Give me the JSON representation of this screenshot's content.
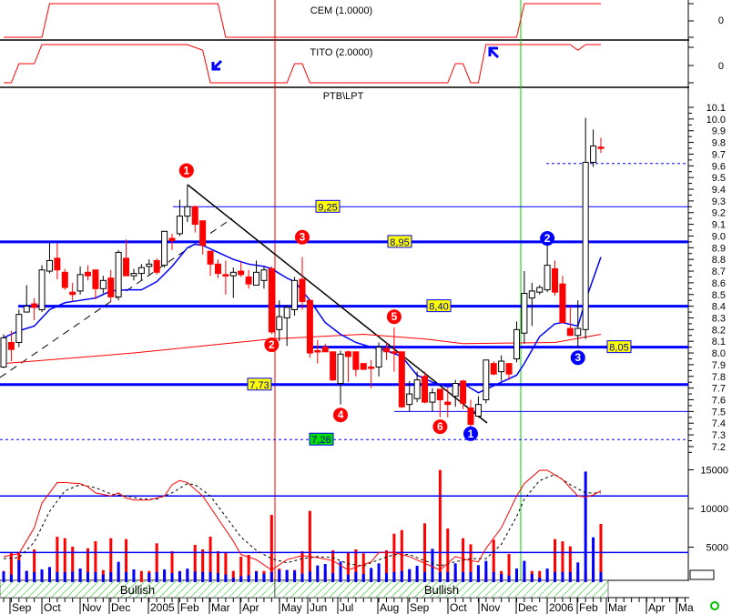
{
  "panels": {
    "cem": {
      "title": "CEM (1.0000)",
      "zero_label": "0"
    },
    "tito": {
      "title": "TITO (2.0000)",
      "zero_label": "0"
    },
    "price": {
      "title": "PTB\\LPT"
    }
  },
  "colors": {
    "bull_candle": "#ffffff",
    "bear_candle": "#ff0000",
    "ma_short": "#0000ff",
    "ma_long": "#ff0000",
    "level_line": "#0000ff",
    "bullish_zone": "#00c000",
    "bearish_zone": "#ff0000",
    "label_bg": "#ffff00",
    "support_label_bg": "#00e000"
  },
  "chart_data": {
    "type": "candlestick",
    "price_axis": {
      "ylim": [
        7.2,
        10.1
      ],
      "ticks": [
        "10.1",
        "10.0",
        "9.9",
        "9.8",
        "9.7",
        "9.6",
        "9.5",
        "9.4",
        "9.3",
        "9.2",
        "9.1",
        "9.0",
        "8.9",
        "8.8",
        "8.7",
        "8.6",
        "8.5",
        "8.4",
        "8.3",
        "8.2",
        "8.1",
        "8.0",
        "7.9",
        "7.8",
        "7.7",
        "7.6",
        "7.5",
        "7.4",
        "7.3",
        "7.2"
      ]
    },
    "volume_axis": {
      "ticks": [
        "15000",
        "10000",
        "5000"
      ],
      "values": [
        15000,
        10000,
        5000
      ]
    },
    "x_ticks": [
      "Sep",
      "Oct",
      "Nov",
      "Dec",
      "2005",
      "Feb",
      "Mar",
      "Apr",
      "May",
      "Jun",
      "Jul",
      "Aug",
      "Sep",
      "Oct",
      "Nov",
      "Dec",
      "2006",
      "Feb",
      "Mar",
      "Apr",
      "Ma"
    ],
    "ohlc": [
      [
        7.88,
        8.16,
        7.87,
        8.13
      ],
      [
        8.09,
        8.19,
        7.93,
        8.03
      ],
      [
        8.09,
        8.37,
        8.05,
        8.33
      ],
      [
        8.35,
        8.58,
        8.35,
        8.4
      ],
      [
        8.42,
        8.47,
        8.28,
        8.39
      ],
      [
        8.37,
        8.75,
        8.35,
        8.71
      ],
      [
        8.7,
        8.94,
        8.68,
        8.79
      ],
      [
        8.81,
        8.94,
        8.63,
        8.71
      ],
      [
        8.69,
        8.72,
        8.54,
        8.56
      ],
      [
        8.52,
        8.6,
        8.44,
        8.5
      ],
      [
        8.53,
        8.74,
        8.5,
        8.67
      ],
      [
        8.69,
        8.75,
        8.62,
        8.66
      ],
      [
        8.71,
        8.71,
        8.46,
        8.55
      ],
      [
        8.55,
        8.66,
        8.51,
        8.62
      ],
      [
        8.64,
        8.71,
        8.44,
        8.48
      ],
      [
        8.48,
        8.88,
        8.45,
        8.86
      ],
      [
        8.81,
        8.97,
        8.66,
        8.66
      ],
      [
        8.66,
        8.72,
        8.62,
        8.68
      ],
      [
        8.68,
        8.76,
        8.62,
        8.73
      ],
      [
        8.74,
        8.8,
        8.67,
        8.76
      ],
      [
        8.79,
        8.81,
        8.67,
        8.69
      ],
      [
        8.75,
        9.04,
        8.73,
        9.04
      ],
      [
        8.98,
        9.02,
        8.88,
        8.96
      ],
      [
        9.02,
        9.31,
        9.0,
        9.17
      ],
      [
        9.17,
        9.44,
        9.12,
        9.25
      ],
      [
        9.25,
        9.26,
        9.03,
        9.1
      ],
      [
        9.13,
        9.13,
        8.84,
        8.92
      ],
      [
        8.87,
        8.87,
        8.66,
        8.76
      ],
      [
        8.76,
        8.8,
        8.64,
        8.68
      ],
      [
        8.67,
        8.79,
        8.5,
        8.67
      ],
      [
        8.66,
        8.73,
        8.47,
        8.69
      ],
      [
        8.7,
        8.78,
        8.65,
        8.67
      ],
      [
        8.65,
        8.71,
        8.55,
        8.59
      ],
      [
        8.58,
        8.79,
        8.58,
        8.69
      ],
      [
        8.62,
        8.74,
        8.55,
        8.71
      ],
      [
        8.72,
        8.74,
        8.16,
        8.18
      ],
      [
        8.2,
        8.45,
        8.1,
        8.31
      ],
      [
        8.3,
        8.41,
        8.06,
        8.39
      ],
      [
        8.37,
        8.65,
        8.32,
        8.62
      ],
      [
        8.63,
        8.82,
        8.37,
        8.44
      ],
      [
        8.45,
        8.45,
        7.96,
        8.0
      ],
      [
        8.02,
        8.11,
        7.91,
        8.02
      ],
      [
        8.05,
        8.08,
        8.01,
        8.01
      ],
      [
        8.01,
        8.01,
        7.76,
        7.77
      ],
      [
        7.74,
        8.02,
        7.56,
        7.99
      ],
      [
        8.01,
        8.02,
        7.75,
        7.97
      ],
      [
        8.01,
        8.01,
        7.8,
        7.86
      ],
      [
        7.91,
        7.91,
        7.86,
        7.86
      ],
      [
        7.88,
        7.94,
        7.7,
        7.88
      ],
      [
        7.88,
        8.09,
        7.8,
        8.05
      ],
      [
        8.04,
        8.09,
        7.94,
        8.01
      ],
      [
        8.01,
        8.22,
        7.84,
        8.01
      ],
      [
        8.01,
        8.01,
        7.53,
        7.54
      ],
      [
        7.56,
        7.76,
        7.5,
        7.65
      ],
      [
        7.61,
        7.84,
        7.58,
        7.77
      ],
      [
        7.8,
        7.84,
        7.57,
        7.58
      ],
      [
        7.58,
        7.7,
        7.5,
        7.66
      ],
      [
        7.69,
        7.69,
        7.45,
        7.6
      ],
      [
        7.58,
        7.7,
        7.45,
        7.56
      ],
      [
        7.63,
        7.77,
        7.54,
        7.74
      ],
      [
        7.76,
        7.77,
        7.52,
        7.57
      ],
      [
        7.53,
        7.6,
        7.36,
        7.39
      ],
      [
        7.46,
        7.63,
        7.45,
        7.56
      ],
      [
        7.6,
        7.94,
        7.57,
        7.94
      ],
      [
        7.91,
        7.93,
        7.81,
        7.82
      ],
      [
        7.84,
        7.98,
        7.76,
        7.93
      ],
      [
        7.91,
        7.91,
        7.77,
        7.82
      ],
      [
        7.95,
        8.27,
        7.92,
        8.2
      ],
      [
        8.17,
        8.7,
        8.08,
        8.51
      ],
      [
        8.47,
        8.6,
        8.23,
        8.53
      ],
      [
        8.52,
        8.58,
        8.5,
        8.56
      ],
      [
        8.54,
        8.93,
        8.52,
        8.75
      ],
      [
        8.72,
        8.79,
        8.49,
        8.52
      ],
      [
        8.59,
        8.66,
        8.26,
        8.26
      ],
      [
        8.21,
        8.4,
        8.15,
        8.15
      ],
      [
        8.15,
        8.45,
        8.05,
        8.21
      ],
      [
        8.2,
        10.01,
        8.12,
        9.63
      ],
      [
        9.63,
        9.91,
        9.59,
        9.77
      ],
      [
        9.76,
        9.84,
        9.71,
        9.76
      ]
    ],
    "ma_short": [
      [
        0,
        8.13
      ],
      [
        2,
        8.19
      ],
      [
        4,
        8.23
      ],
      [
        6,
        8.37
      ],
      [
        8,
        8.43
      ],
      [
        10,
        8.45
      ],
      [
        12,
        8.47
      ],
      [
        14,
        8.53
      ],
      [
        16,
        8.54
      ],
      [
        18,
        8.54
      ],
      [
        20,
        8.61
      ],
      [
        22,
        8.74
      ],
      [
        24,
        8.9
      ],
      [
        25,
        8.93
      ],
      [
        26,
        8.92
      ],
      [
        28,
        8.86
      ],
      [
        30,
        8.8
      ],
      [
        32,
        8.76
      ],
      [
        34,
        8.74
      ],
      [
        35,
        8.72
      ],
      [
        37,
        8.64
      ],
      [
        38,
        8.61
      ],
      [
        40,
        8.45
      ],
      [
        42,
        8.26
      ],
      [
        44,
        8.16
      ],
      [
        46,
        8.09
      ],
      [
        48,
        8.05
      ],
      [
        50,
        8.02
      ],
      [
        52,
        7.97
      ],
      [
        54,
        7.81
      ],
      [
        56,
        7.75
      ],
      [
        58,
        7.71
      ],
      [
        60,
        7.74
      ],
      [
        62,
        7.66
      ],
      [
        63,
        7.69
      ],
      [
        65,
        7.75
      ],
      [
        67,
        7.81
      ],
      [
        68,
        7.91
      ],
      [
        70,
        8.14
      ],
      [
        72,
        8.25
      ],
      [
        73,
        8.26
      ],
      [
        75,
        8.23
      ],
      [
        76,
        8.45
      ],
      [
        78,
        8.82
      ]
    ],
    "ma_long": [
      [
        0,
        7.91
      ],
      [
        17,
        8.0
      ],
      [
        35,
        8.12
      ],
      [
        47,
        8.16
      ],
      [
        55,
        8.12
      ],
      [
        60,
        8.08
      ],
      [
        72,
        8.09
      ],
      [
        78,
        8.16
      ]
    ],
    "volume_red": [
      1450,
      3840,
      3730,
      1450,
      4240,
      1570,
      1450,
      5880,
      5690,
      4590,
      1760,
      4390,
      5290,
      1570,
      5690,
      1450,
      5570,
      1570,
      1450,
      1450,
      5020,
      1450,
      4000,
      1450,
      1450,
      4820,
      4240,
      5880,
      4000,
      3880,
      1450,
      3290,
      3530,
      1450,
      1450,
      8710,
      1760,
      1570,
      1570,
      4000,
      9220,
      1450,
      1450,
      4120,
      1450,
      3840,
      4240,
      3730,
      1450,
      1450,
      4120,
      6270,
      6740,
      1450,
      1450,
      7610,
      1450,
      14510,
      6940,
      1450,
      5690,
      4900,
      1450,
      1450,
      5490,
      1450,
      3650,
      1450,
      1450,
      1450,
      1450,
      1450,
      5570,
      5290,
      4630,
      1450,
      1450,
      1450,
      7530
    ],
    "volume_blue": [
      1370,
      980,
      2820,
      1450,
      1290,
      1650,
      1960,
      1290,
      1290,
      1370,
      1760,
      1290,
      1290,
      980,
      1290,
      2630,
      1290,
      1650,
      0,
      1180,
      1290,
      1650,
      1180,
      1370,
      1760,
      1370,
      1290,
      1290,
      1180,
      980,
      590,
      780,
      900,
      1370,
      1100,
      1290,
      1570,
      1570,
      1490,
      1100,
      1370,
      2160,
      2350,
      1180,
      2670,
      980,
      1290,
      1060,
      1840,
      2430,
      1180,
      1290,
      1450,
      1690,
      2120,
      1290,
      4310,
      1290,
      1290,
      2430,
      1290,
      1290,
      2200,
      2750,
      1290,
      1060,
      860,
      1760,
      2750,
      1060,
      590,
      1760,
      1290,
      1290,
      1290,
      2550,
      14310,
      5800,
      1290
    ],
    "stoch_k": [
      [
        0,
        16
      ],
      [
        2,
        19
      ],
      [
        4,
        44
      ],
      [
        5,
        68
      ],
      [
        7,
        88
      ],
      [
        8,
        88
      ],
      [
        10,
        87
      ],
      [
        11,
        84
      ],
      [
        12,
        78
      ],
      [
        14,
        75
      ],
      [
        15,
        78
      ],
      [
        16,
        73
      ],
      [
        17,
        71
      ],
      [
        19,
        71
      ],
      [
        21,
        75
      ],
      [
        22,
        86
      ],
      [
        23,
        90
      ],
      [
        24,
        88
      ],
      [
        26,
        75
      ],
      [
        28,
        53
      ],
      [
        30,
        31
      ],
      [
        31,
        18
      ],
      [
        33,
        13
      ],
      [
        35,
        3
      ],
      [
        37,
        13
      ],
      [
        39,
        17
      ],
      [
        41,
        15
      ],
      [
        43,
        12
      ],
      [
        45,
        3
      ],
      [
        48,
        11
      ],
      [
        49,
        20
      ],
      [
        51,
        20
      ],
      [
        53,
        16
      ],
      [
        57,
        3
      ],
      [
        59,
        16
      ],
      [
        61,
        12
      ],
      [
        62,
        11
      ],
      [
        63,
        24
      ],
      [
        65,
        44
      ],
      [
        67,
        75
      ],
      [
        68,
        87
      ],
      [
        70,
        100
      ],
      [
        71,
        100
      ],
      [
        73,
        91
      ],
      [
        75,
        75
      ],
      [
        76,
        74
      ],
      [
        77,
        76
      ],
      [
        78,
        80
      ]
    ],
    "stoch_d": [
      [
        0,
        14
      ],
      [
        2,
        15
      ],
      [
        4,
        30
      ],
      [
        5,
        45
      ],
      [
        6,
        60
      ],
      [
        8,
        80
      ],
      [
        10,
        86
      ],
      [
        12,
        83
      ],
      [
        14,
        77
      ],
      [
        16,
        75
      ],
      [
        18,
        72
      ],
      [
        20,
        72
      ],
      [
        22,
        78
      ],
      [
        24,
        87
      ],
      [
        25,
        86
      ],
      [
        27,
        75
      ],
      [
        29,
        55
      ],
      [
        31,
        35
      ],
      [
        33,
        22
      ],
      [
        35,
        14
      ],
      [
        37,
        10
      ],
      [
        39,
        14
      ],
      [
        41,
        16
      ],
      [
        43,
        15
      ],
      [
        45,
        9
      ],
      [
        47,
        7
      ],
      [
        49,
        13
      ],
      [
        51,
        18
      ],
      [
        53,
        18
      ],
      [
        55,
        12
      ],
      [
        57,
        7
      ],
      [
        59,
        11
      ],
      [
        61,
        14
      ],
      [
        63,
        14
      ],
      [
        65,
        28
      ],
      [
        67,
        55
      ],
      [
        68,
        72
      ],
      [
        70,
        90
      ],
      [
        72,
        96
      ],
      [
        74,
        86
      ],
      [
        76,
        78
      ],
      [
        78,
        78
      ]
    ],
    "stoch_levels": [
      75,
      20
    ],
    "levels": [
      {
        "value": 9.25,
        "label": "9,25",
        "style": "thin"
      },
      {
        "value": 8.95,
        "label": "8,95",
        "style": "thick"
      },
      {
        "value": 8.4,
        "label": "8,40",
        "style": "thick"
      },
      {
        "value": 8.05,
        "label": "8,05",
        "style": "thick"
      },
      {
        "value": 7.73,
        "label": "7,73",
        "style": "thick"
      },
      {
        "value": 7.26,
        "label": "7,26",
        "style": "dashed"
      },
      {
        "value": 7.5,
        "label": "",
        "style": "thin"
      },
      {
        "value": 9.62,
        "label": "",
        "style": "dashed"
      }
    ],
    "wave_markers": [
      {
        "label": "1",
        "color": "red",
        "index": 24,
        "price": 9.56
      },
      {
        "label": "2",
        "color": "red",
        "index": 35,
        "price": 8.07
      },
      {
        "label": "3",
        "color": "red",
        "index": 39,
        "price": 8.99
      },
      {
        "label": "4",
        "color": "red",
        "index": 44,
        "price": 7.47
      },
      {
        "label": "5",
        "color": "red",
        "index": 51,
        "price": 8.31
      },
      {
        "label": "6",
        "color": "red",
        "index": 57,
        "price": 7.37
      },
      {
        "label": "1",
        "color": "blue",
        "index": 61,
        "price": 7.31
      },
      {
        "label": "2",
        "color": "blue",
        "index": 71,
        "price": 8.98
      },
      {
        "label": "3",
        "color": "blue",
        "index": 75,
        "price": 7.96
      }
    ],
    "cem_signal": [
      [
        0,
        0
      ],
      [
        5,
        0
      ],
      [
        6,
        1
      ],
      [
        28,
        1
      ],
      [
        29,
        0
      ],
      [
        67,
        0
      ],
      [
        68,
        1
      ],
      [
        78,
        1
      ]
    ],
    "tito_signal": [
      [
        0,
        0
      ],
      [
        1,
        0
      ],
      [
        2,
        1
      ],
      [
        4,
        1
      ],
      [
        5,
        2
      ],
      [
        24,
        2
      ],
      [
        26,
        1.7
      ],
      [
        27,
        0
      ],
      [
        37,
        0
      ],
      [
        38,
        1
      ],
      [
        39,
        1
      ],
      [
        40,
        0
      ],
      [
        58,
        0
      ],
      [
        59,
        1
      ],
      [
        60,
        1
      ],
      [
        61,
        0
      ],
      [
        62,
        0
      ],
      [
        63,
        2
      ],
      [
        74,
        2
      ],
      [
        75,
        1.7
      ],
      [
        76,
        2
      ],
      [
        78,
        2
      ]
    ],
    "sentiment": [
      {
        "label": "Bullish",
        "from": 0,
        "to": 35
      },
      {
        "label": "Bearish",
        "from": 35,
        "to": 67
      },
      {
        "label": "Bullish",
        "from": 67,
        "to": 79
      }
    ]
  }
}
